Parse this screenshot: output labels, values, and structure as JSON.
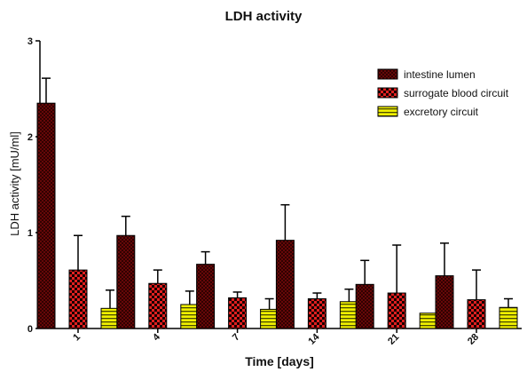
{
  "chart_data": {
    "type": "bar",
    "title": "LDH activity",
    "xlabel": "Time [days]",
    "ylabel": "LDH activity [mU/ml]",
    "categories": [
      "1",
      "4",
      "7",
      "14",
      "21",
      "28"
    ],
    "ylim": [
      0,
      3
    ],
    "yticks": [
      "0",
      "1",
      "2",
      "3"
    ],
    "grid": false,
    "legend_position": "top-right",
    "error_bars": "upper",
    "series": [
      {
        "name": "intestine lumen",
        "pattern": "dark-red-crosshatch",
        "color": "#6b0000",
        "values": [
          2.35,
          0.97,
          0.67,
          0.92,
          0.46,
          0.55
        ],
        "errors": [
          0.26,
          0.2,
          0.13,
          0.37,
          0.25,
          0.34
        ]
      },
      {
        "name": "surrogate blood circuit",
        "pattern": "red-black-checker",
        "color": "#e02020",
        "values": [
          0.61,
          0.47,
          0.32,
          0.31,
          0.37,
          0.3
        ],
        "errors": [
          0.36,
          0.14,
          0.06,
          0.06,
          0.5,
          0.31
        ]
      },
      {
        "name": "excretory circuit",
        "pattern": "yellow-horizontal-stripes",
        "color": "#f0f000",
        "values": [
          0.21,
          0.25,
          0.2,
          0.28,
          0.16,
          0.22
        ],
        "errors": [
          0.19,
          0.14,
          0.11,
          0.13,
          0.0,
          0.09
        ]
      }
    ]
  }
}
